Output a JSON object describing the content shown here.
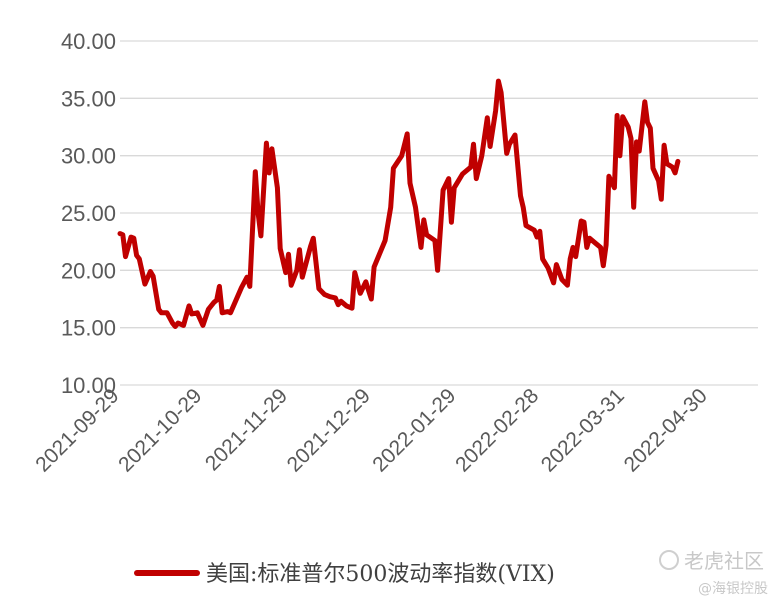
{
  "chart_data": {
    "type": "line",
    "ylim": [
      10,
      40
    ],
    "yticks": [
      "40.00",
      "35.00",
      "30.00",
      "25.00",
      "20.00",
      "15.00",
      "10.00"
    ],
    "ytick_values": [
      40,
      35,
      30,
      25,
      20,
      15,
      10
    ],
    "xlim": [
      "2021-09-29",
      "2022-05-18"
    ],
    "xticks": [
      "2021-09-29",
      "2021-10-29",
      "2021-11-29",
      "2021-12-29",
      "2022-01-29",
      "2022-02-28",
      "2022-03-31",
      "2022-04-30"
    ],
    "grid": true,
    "legend_position": "bottom",
    "series": [
      {
        "name": "美国:标准普尔500波动率指数(VIX)",
        "color": "#C00000",
        "points": [
          [
            "2021-09-29",
            23.2
          ],
          [
            "2021-09-30",
            23.1
          ],
          [
            "2021-10-01",
            21.2
          ],
          [
            "2021-10-03",
            22.9
          ],
          [
            "2021-10-04",
            22.8
          ],
          [
            "2021-10-05",
            21.3
          ],
          [
            "2021-10-06",
            21.0
          ],
          [
            "2021-10-08",
            18.8
          ],
          [
            "2021-10-10",
            19.9
          ],
          [
            "2021-10-11",
            19.5
          ],
          [
            "2021-10-13",
            16.6
          ],
          [
            "2021-10-14",
            16.3
          ],
          [
            "2021-10-16",
            16.3
          ],
          [
            "2021-10-18",
            15.4
          ],
          [
            "2021-10-19",
            15.1
          ],
          [
            "2021-10-20",
            15.4
          ],
          [
            "2021-10-22",
            15.2
          ],
          [
            "2021-10-24",
            16.9
          ],
          [
            "2021-10-25",
            16.2
          ],
          [
            "2021-10-27",
            16.3
          ],
          [
            "2021-10-29",
            15.2
          ],
          [
            "2021-10-31",
            16.6
          ],
          [
            "2021-11-02",
            17.2
          ],
          [
            "2021-11-03",
            17.4
          ],
          [
            "2021-11-04",
            18.6
          ],
          [
            "2021-11-05",
            16.3
          ],
          [
            "2021-11-07",
            16.4
          ],
          [
            "2021-11-08",
            16.3
          ],
          [
            "2021-11-12",
            18.5
          ],
          [
            "2021-11-14",
            19.4
          ],
          [
            "2021-11-15",
            18.6
          ],
          [
            "2021-11-17",
            28.6
          ],
          [
            "2021-11-18",
            25.0
          ],
          [
            "2021-11-19",
            23.0
          ],
          [
            "2021-11-21",
            31.1
          ],
          [
            "2021-11-22",
            28.5
          ],
          [
            "2021-11-23",
            30.6
          ],
          [
            "2021-11-25",
            27.2
          ],
          [
            "2021-11-26",
            21.9
          ],
          [
            "2021-11-28",
            19.8
          ],
          [
            "2021-11-29",
            21.4
          ],
          [
            "2021-11-30",
            18.7
          ],
          [
            "2021-12-02",
            20.0
          ],
          [
            "2021-12-03",
            21.8
          ],
          [
            "2021-12-04",
            19.4
          ],
          [
            "2021-12-07",
            22.1
          ],
          [
            "2021-12-08",
            22.8
          ],
          [
            "2021-12-10",
            18.4
          ],
          [
            "2021-12-12",
            17.9
          ],
          [
            "2021-12-14",
            17.7
          ],
          [
            "2021-12-16",
            17.6
          ],
          [
            "2021-12-17",
            17.0
          ],
          [
            "2021-12-18",
            17.3
          ],
          [
            "2021-12-20",
            16.9
          ],
          [
            "2021-12-22",
            16.7
          ],
          [
            "2021-12-23",
            19.8
          ],
          [
            "2021-12-25",
            18.0
          ],
          [
            "2021-12-27",
            19.0
          ],
          [
            "2021-12-29",
            17.5
          ],
          [
            "2021-12-30",
            20.3
          ],
          [
            "2022-01-03",
            22.6
          ],
          [
            "2022-01-05",
            25.5
          ],
          [
            "2022-01-06",
            28.9
          ],
          [
            "2022-01-09",
            30.0
          ],
          [
            "2022-01-11",
            31.9
          ],
          [
            "2022-01-12",
            27.6
          ],
          [
            "2022-01-14",
            25.5
          ],
          [
            "2022-01-16",
            22.0
          ],
          [
            "2022-01-17",
            24.4
          ],
          [
            "2022-01-18",
            23.1
          ],
          [
            "2022-01-21",
            22.6
          ],
          [
            "2022-01-22",
            20.0
          ],
          [
            "2022-01-24",
            27.0
          ],
          [
            "2022-01-26",
            28.0
          ],
          [
            "2022-01-27",
            24.2
          ],
          [
            "2022-01-28",
            27.2
          ],
          [
            "2022-01-31",
            28.4
          ],
          [
            "2022-02-03",
            29.0
          ],
          [
            "2022-02-04",
            31.0
          ],
          [
            "2022-02-05",
            28.0
          ],
          [
            "2022-02-07",
            30.0
          ],
          [
            "2022-02-09",
            33.3
          ],
          [
            "2022-02-10",
            30.8
          ],
          [
            "2022-02-12",
            33.9
          ],
          [
            "2022-02-13",
            36.5
          ],
          [
            "2022-02-14",
            35.5
          ],
          [
            "2022-02-16",
            30.2
          ],
          [
            "2022-02-17",
            31.0
          ],
          [
            "2022-02-19",
            31.8
          ],
          [
            "2022-02-21",
            26.5
          ],
          [
            "2022-02-22",
            25.5
          ],
          [
            "2022-02-23",
            23.9
          ],
          [
            "2022-02-26",
            23.5
          ],
          [
            "2022-02-27",
            22.9
          ],
          [
            "2022-02-28",
            23.4
          ],
          [
            "2022-03-01",
            21.0
          ],
          [
            "2022-03-03",
            20.2
          ],
          [
            "2022-03-05",
            18.9
          ],
          [
            "2022-03-06",
            20.5
          ],
          [
            "2022-03-08",
            19.2
          ],
          [
            "2022-03-10",
            18.7
          ],
          [
            "2022-03-11",
            21.0
          ],
          [
            "2022-03-12",
            22.0
          ],
          [
            "2022-03-13",
            21.2
          ],
          [
            "2022-03-15",
            24.3
          ],
          [
            "2022-03-16",
            24.2
          ],
          [
            "2022-03-17",
            22.0
          ],
          [
            "2022-03-18",
            22.8
          ],
          [
            "2022-03-20",
            22.4
          ],
          [
            "2022-03-22",
            22.0
          ],
          [
            "2022-03-23",
            20.4
          ],
          [
            "2022-03-24",
            22.2
          ],
          [
            "2022-03-25",
            28.2
          ],
          [
            "2022-03-27",
            27.2
          ],
          [
            "2022-03-28",
            33.5
          ],
          [
            "2022-03-29",
            30.0
          ],
          [
            "2022-03-30",
            33.4
          ],
          [
            "2022-04-01",
            32.5
          ],
          [
            "2022-04-02",
            31.5
          ],
          [
            "2022-04-03",
            25.5
          ],
          [
            "2022-04-04",
            31.2
          ],
          [
            "2022-04-05",
            30.4
          ],
          [
            "2022-04-07",
            34.7
          ],
          [
            "2022-04-08",
            32.9
          ],
          [
            "2022-04-09",
            32.4
          ],
          [
            "2022-04-10",
            28.9
          ],
          [
            "2022-04-12",
            27.8
          ],
          [
            "2022-04-13",
            26.2
          ],
          [
            "2022-04-14",
            30.9
          ],
          [
            "2022-04-15",
            29.3
          ],
          [
            "2022-04-17",
            29.0
          ],
          [
            "2022-04-18",
            28.5
          ],
          [
            "2022-04-19",
            29.5
          ]
        ]
      }
    ]
  },
  "watermark": {
    "primary": "老虎社区",
    "secondary": "@海银控股"
  }
}
